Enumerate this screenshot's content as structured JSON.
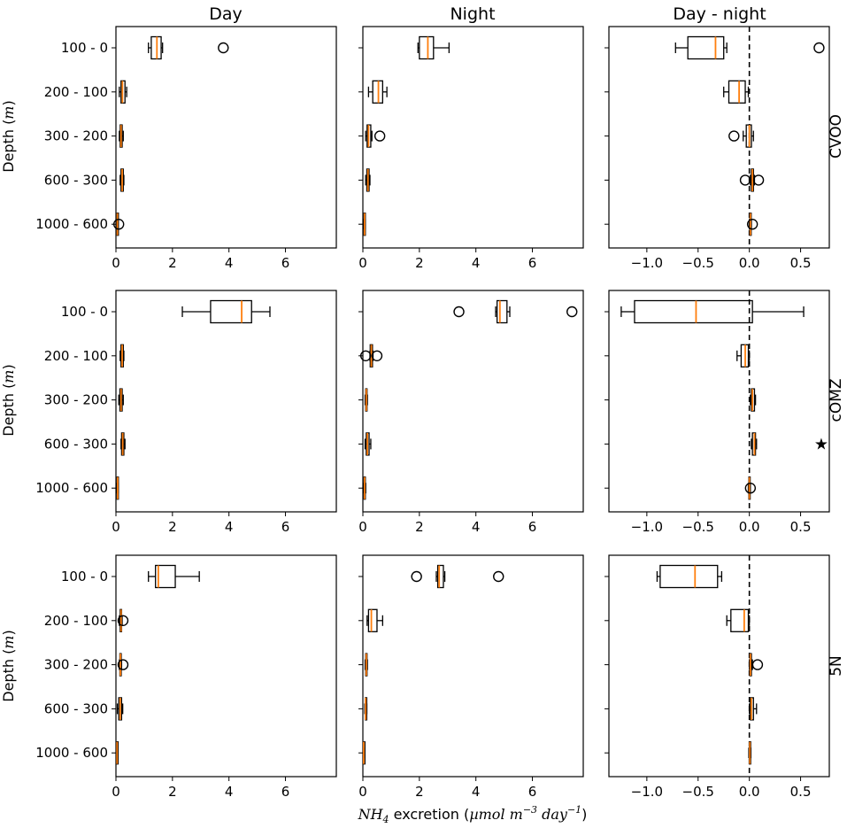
{
  "chart_data": {
    "type": "box",
    "column_titles": [
      "Day",
      "Night",
      "Day - night"
    ],
    "row_labels": [
      "CVOO",
      "cOMZ",
      "5N"
    ],
    "depth_categories": [
      "100 - 0",
      "200 - 100",
      "300 - 200",
      "600 - 300",
      "1000 - 600"
    ],
    "ylabel_prefix": "Depth (",
    "ylabel_var": "m",
    "ylabel_suffix": ")",
    "xlabel": {
      "prefix_italic": "NH",
      "sub": "4",
      "mid": " excretion (",
      "unit_italic": "µmol m",
      "sup1": "−3",
      "unit2_italic": " day",
      "sup2": "−1",
      "suffix": ")"
    },
    "xlim_left": [
      0,
      7.8
    ],
    "xticks_left": [
      0,
      2,
      4,
      6
    ],
    "xlim_right": [
      -1.37,
      0.78
    ],
    "xticks_right": [
      -1.0,
      -0.5,
      0.0,
      0.5
    ],
    "xtick_labels_right": [
      "−1.0",
      "−0.5",
      "0.0",
      "0.5"
    ],
    "zero_line_style": "dashed",
    "significance_marker": "★",
    "colors": {
      "median": "#ff7f0e",
      "box": "#000000"
    },
    "panels": [
      {
        "row": 0,
        "col": 0,
        "boxes": [
          {
            "cat": "100 - 0",
            "whislo": 1.15,
            "q1": 1.25,
            "med": 1.45,
            "q3": 1.6,
            "whishi": 1.65,
            "fliers": [
              3.8
            ]
          },
          {
            "cat": "200 - 100",
            "whislo": 0.12,
            "q1": 0.18,
            "med": 0.23,
            "q3": 0.32,
            "whishi": 0.38,
            "fliers": []
          },
          {
            "cat": "300 - 200",
            "whislo": 0.12,
            "q1": 0.15,
            "med": 0.18,
            "q3": 0.22,
            "whishi": 0.26,
            "fliers": []
          },
          {
            "cat": "600 - 300",
            "whislo": 0.15,
            "q1": 0.18,
            "med": 0.22,
            "q3": 0.26,
            "whishi": 0.28,
            "fliers": []
          },
          {
            "cat": "1000 - 600",
            "whislo": 0.03,
            "q1": 0.04,
            "med": 0.05,
            "q3": 0.06,
            "whishi": 0.07,
            "fliers": [
              0.1
            ]
          }
        ]
      },
      {
        "row": 0,
        "col": 1,
        "boxes": [
          {
            "cat": "100 - 0",
            "whislo": 1.95,
            "q1": 2.0,
            "med": 2.3,
            "q3": 2.5,
            "whishi": 3.05,
            "fliers": []
          },
          {
            "cat": "200 - 100",
            "whislo": 0.2,
            "q1": 0.35,
            "med": 0.55,
            "q3": 0.7,
            "whishi": 0.85,
            "fliers": []
          },
          {
            "cat": "300 - 200",
            "whislo": 0.1,
            "q1": 0.15,
            "med": 0.2,
            "q3": 0.28,
            "whishi": 0.32,
            "fliers": [
              0.6
            ]
          },
          {
            "cat": "600 - 300",
            "whislo": 0.1,
            "q1": 0.14,
            "med": 0.18,
            "q3": 0.22,
            "whishi": 0.25,
            "fliers": []
          },
          {
            "cat": "1000 - 600",
            "whislo": 0.03,
            "q1": 0.04,
            "med": 0.06,
            "q3": 0.07,
            "whishi": 0.08,
            "fliers": []
          }
        ]
      },
      {
        "row": 0,
        "col": 2,
        "boxes": [
          {
            "cat": "100 - 0",
            "whislo": -0.72,
            "q1": -0.6,
            "med": -0.33,
            "q3": -0.25,
            "whishi": -0.22,
            "fliers": [
              0.68
            ]
          },
          {
            "cat": "200 - 100",
            "whislo": -0.25,
            "q1": -0.2,
            "med": -0.1,
            "q3": -0.04,
            "whishi": -0.01,
            "fliers": []
          },
          {
            "cat": "300 - 200",
            "whislo": -0.06,
            "q1": -0.03,
            "med": 0.0,
            "q3": 0.02,
            "whishi": 0.04,
            "fliers": [
              -0.15
            ]
          },
          {
            "cat": "600 - 300",
            "whislo": 0.01,
            "q1": 0.02,
            "med": 0.03,
            "q3": 0.04,
            "whishi": 0.05,
            "fliers": [
              -0.04,
              0.09
            ]
          },
          {
            "cat": "1000 - 600",
            "whislo": 0.0,
            "q1": 0.005,
            "med": 0.01,
            "q3": 0.015,
            "whishi": 0.02,
            "fliers": [
              0.03
            ]
          }
        ]
      },
      {
        "row": 1,
        "col": 0,
        "boxes": [
          {
            "cat": "100 - 0",
            "whislo": 2.35,
            "q1": 3.35,
            "med": 4.45,
            "q3": 4.8,
            "whishi": 5.45,
            "fliers": []
          },
          {
            "cat": "200 - 100",
            "whislo": 0.15,
            "q1": 0.18,
            "med": 0.22,
            "q3": 0.26,
            "whishi": 0.28,
            "fliers": []
          },
          {
            "cat": "300 - 200",
            "whislo": 0.1,
            "q1": 0.14,
            "med": 0.18,
            "q3": 0.22,
            "whishi": 0.26,
            "fliers": []
          },
          {
            "cat": "600 - 300",
            "whislo": 0.18,
            "q1": 0.2,
            "med": 0.24,
            "q3": 0.28,
            "whishi": 0.32,
            "fliers": []
          },
          {
            "cat": "1000 - 600",
            "whislo": 0.03,
            "q1": 0.04,
            "med": 0.06,
            "q3": 0.07,
            "whishi": 0.08,
            "fliers": []
          }
        ]
      },
      {
        "row": 1,
        "col": 1,
        "boxes": [
          {
            "cat": "100 - 0",
            "whislo": 4.7,
            "q1": 4.75,
            "med": 4.85,
            "q3": 5.1,
            "whishi": 5.2,
            "fliers": [
              3.4,
              7.4
            ]
          },
          {
            "cat": "200 - 100",
            "whislo": 0.25,
            "q1": 0.26,
            "med": 0.3,
            "q3": 0.34,
            "whishi": 0.36,
            "fliers": [
              0.1,
              0.5
            ]
          },
          {
            "cat": "300 - 200",
            "whislo": 0.08,
            "q1": 0.1,
            "med": 0.12,
            "q3": 0.14,
            "whishi": 0.16,
            "fliers": []
          },
          {
            "cat": "600 - 300",
            "whislo": 0.08,
            "q1": 0.12,
            "med": 0.16,
            "q3": 0.22,
            "whishi": 0.28,
            "fliers": []
          },
          {
            "cat": "1000 - 600",
            "whislo": 0.03,
            "q1": 0.04,
            "med": 0.06,
            "q3": 0.08,
            "whishi": 0.1,
            "fliers": []
          }
        ]
      },
      {
        "row": 1,
        "col": 2,
        "boxes": [
          {
            "cat": "100 - 0",
            "whislo": -1.25,
            "q1": -1.12,
            "med": -0.52,
            "q3": 0.03,
            "whishi": 0.53,
            "fliers": []
          },
          {
            "cat": "200 - 100",
            "whislo": -0.12,
            "q1": -0.08,
            "med": -0.04,
            "q3": -0.01,
            "whishi": 0.0,
            "fliers": []
          },
          {
            "cat": "300 - 200",
            "whislo": 0.01,
            "q1": 0.02,
            "med": 0.03,
            "q3": 0.05,
            "whishi": 0.06,
            "fliers": []
          },
          {
            "cat": "600 - 300",
            "whislo": 0.02,
            "q1": 0.03,
            "med": 0.05,
            "q3": 0.06,
            "whishi": 0.07,
            "fliers": []
          },
          {
            "cat": "1000 - 600",
            "whislo": -0.01,
            "q1": -0.005,
            "med": 0.0,
            "q3": 0.005,
            "whishi": 0.01,
            "fliers": [
              0.01
            ]
          }
        ]
      },
      {
        "row": 2,
        "col": 0,
        "boxes": [
          {
            "cat": "100 - 0",
            "whislo": 1.15,
            "q1": 1.4,
            "med": 1.5,
            "q3": 2.1,
            "whishi": 2.95,
            "fliers": []
          },
          {
            "cat": "200 - 100",
            "whislo": 0.12,
            "q1": 0.15,
            "med": 0.18,
            "q3": 0.2,
            "whishi": 0.22,
            "fliers": [
              0.25
            ]
          },
          {
            "cat": "300 - 200",
            "whislo": 0.12,
            "q1": 0.14,
            "med": 0.16,
            "q3": 0.18,
            "whishi": 0.2,
            "fliers": [
              0.25
            ]
          },
          {
            "cat": "600 - 300",
            "whislo": 0.05,
            "q1": 0.1,
            "med": 0.15,
            "q3": 0.2,
            "whishi": 0.24,
            "fliers": []
          },
          {
            "cat": "1000 - 600",
            "whislo": 0.02,
            "q1": 0.03,
            "med": 0.04,
            "q3": 0.05,
            "whishi": 0.06,
            "fliers": []
          }
        ]
      },
      {
        "row": 2,
        "col": 1,
        "boxes": [
          {
            "cat": "100 - 0",
            "whislo": 2.6,
            "q1": 2.65,
            "med": 2.7,
            "q3": 2.85,
            "whishi": 2.9,
            "fliers": [
              1.9,
              4.8
            ]
          },
          {
            "cat": "200 - 100",
            "whislo": 0.15,
            "q1": 0.2,
            "med": 0.3,
            "q3": 0.5,
            "whishi": 0.7,
            "fliers": []
          },
          {
            "cat": "300 - 200",
            "whislo": 0.08,
            "q1": 0.1,
            "med": 0.12,
            "q3": 0.14,
            "whishi": 0.16,
            "fliers": []
          },
          {
            "cat": "600 - 300",
            "whislo": 0.07,
            "q1": 0.09,
            "med": 0.1,
            "q3": 0.12,
            "whishi": 0.14,
            "fliers": []
          },
          {
            "cat": "1000 - 600",
            "whislo": 0.02,
            "q1": 0.025,
            "med": 0.03,
            "q3": 0.035,
            "whishi": 0.04,
            "fliers": []
          }
        ]
      },
      {
        "row": 2,
        "col": 2,
        "boxes": [
          {
            "cat": "100 - 0",
            "whislo": -0.9,
            "q1": -0.87,
            "med": -0.53,
            "q3": -0.31,
            "whishi": -0.27,
            "fliers": []
          },
          {
            "cat": "200 - 100",
            "whislo": -0.22,
            "q1": -0.18,
            "med": -0.05,
            "q3": -0.01,
            "whishi": 0.0,
            "fliers": []
          },
          {
            "cat": "300 - 200",
            "whislo": 0.0,
            "q1": 0.005,
            "med": 0.01,
            "q3": 0.02,
            "whishi": 0.03,
            "fliers": [
              0.08
            ]
          },
          {
            "cat": "600 - 300",
            "whislo": 0.0,
            "q1": 0.01,
            "med": 0.02,
            "q3": 0.04,
            "whishi": 0.07,
            "fliers": []
          },
          {
            "cat": "1000 - 600",
            "whislo": -0.005,
            "q1": 0.0,
            "med": 0.005,
            "q3": 0.01,
            "whishi": 0.015,
            "fliers": []
          }
        ]
      }
    ],
    "significance": [
      {
        "row": 1,
        "cat": "600 - 300"
      }
    ]
  }
}
